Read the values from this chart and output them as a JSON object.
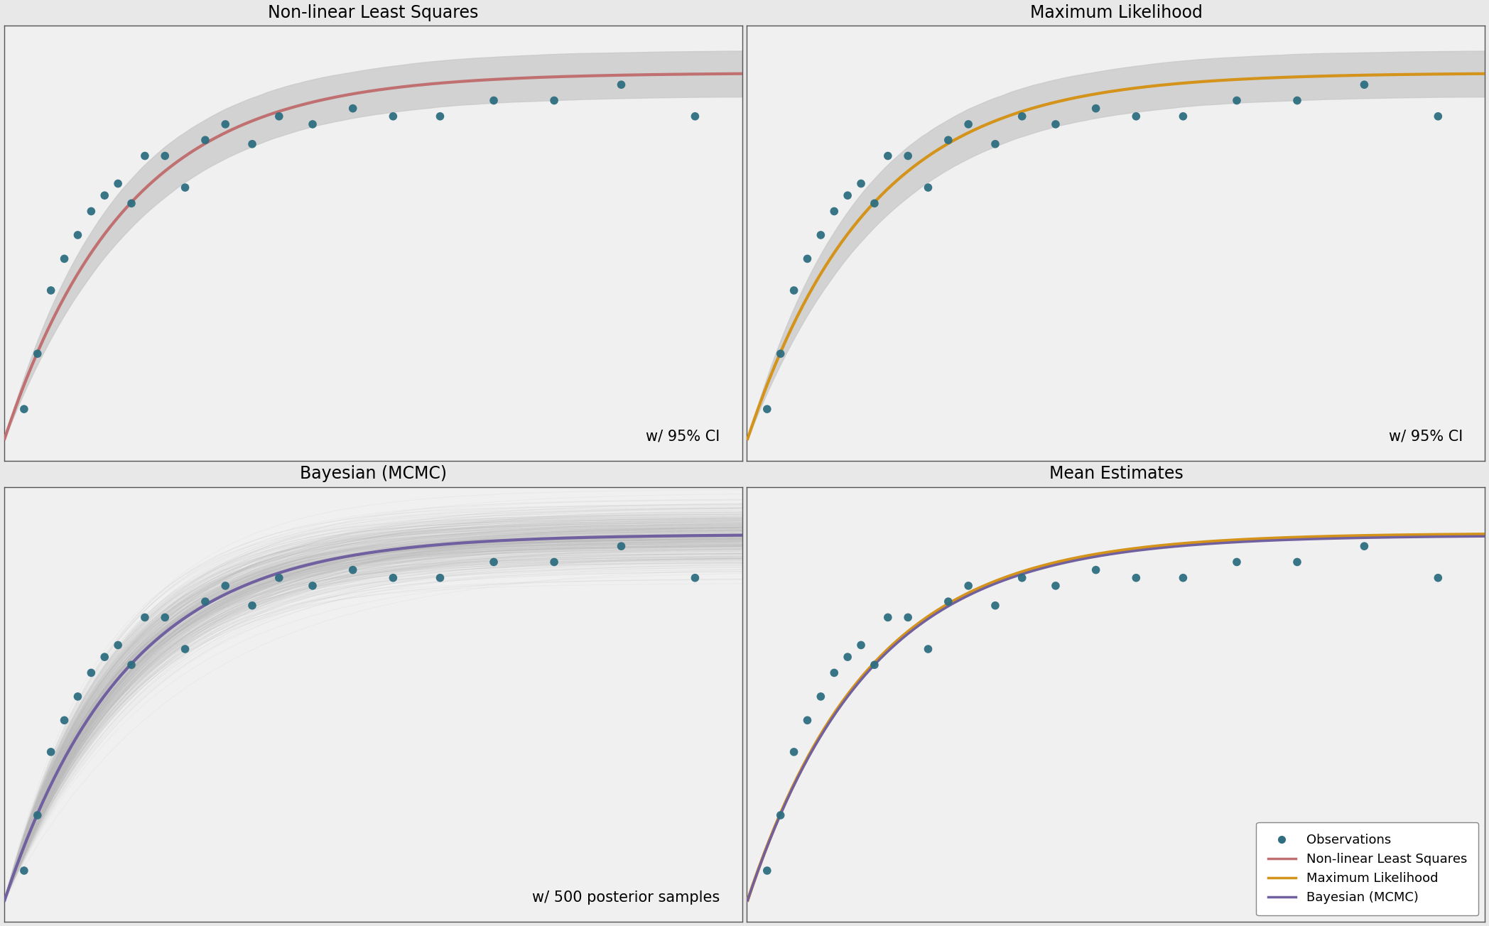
{
  "title_nls": "Non-linear Least Squares",
  "title_ml": "Maximum Likelihood",
  "title_bayes": "Bayesian (MCMC)",
  "title_mean": "Mean Estimates",
  "annotation_ci": "w/ 95% CI",
  "annotation_post": "w/ 500 posterior samples",
  "dot_color": "#2e6e80",
  "nls_color": "#c07070",
  "ml_color": "#d4931a",
  "bayes_color": "#7060a0",
  "ci_color": "#c8c8c8",
  "posterior_line_color": "#bbbbbb",
  "bg_color": "#f0f0f0",
  "title_fontsize": 17,
  "annotation_fontsize": 15,
  "legend_fontsize": 13,
  "dot_size": 70,
  "x_data": [
    0.3,
    0.5,
    0.7,
    0.9,
    1.1,
    1.3,
    1.5,
    1.7,
    1.9,
    2.1,
    2.4,
    2.7,
    3.0,
    3.3,
    3.7,
    4.1,
    4.6,
    5.2,
    5.8,
    6.5,
    7.3,
    8.2,
    9.2,
    10.3
  ],
  "y_data": [
    0.08,
    0.22,
    0.38,
    0.46,
    0.52,
    0.58,
    0.62,
    0.65,
    0.6,
    0.72,
    0.72,
    0.64,
    0.76,
    0.8,
    0.75,
    0.82,
    0.8,
    0.84,
    0.82,
    0.82,
    0.86,
    0.86,
    0.9,
    0.82
  ],
  "model_a": 0.93,
  "model_b": 0.55,
  "xlim": [
    0,
    11.0
  ],
  "ylim": [
    -0.05,
    1.05
  ],
  "n_posterior": 500,
  "outer_bg": "#e8e8e8"
}
